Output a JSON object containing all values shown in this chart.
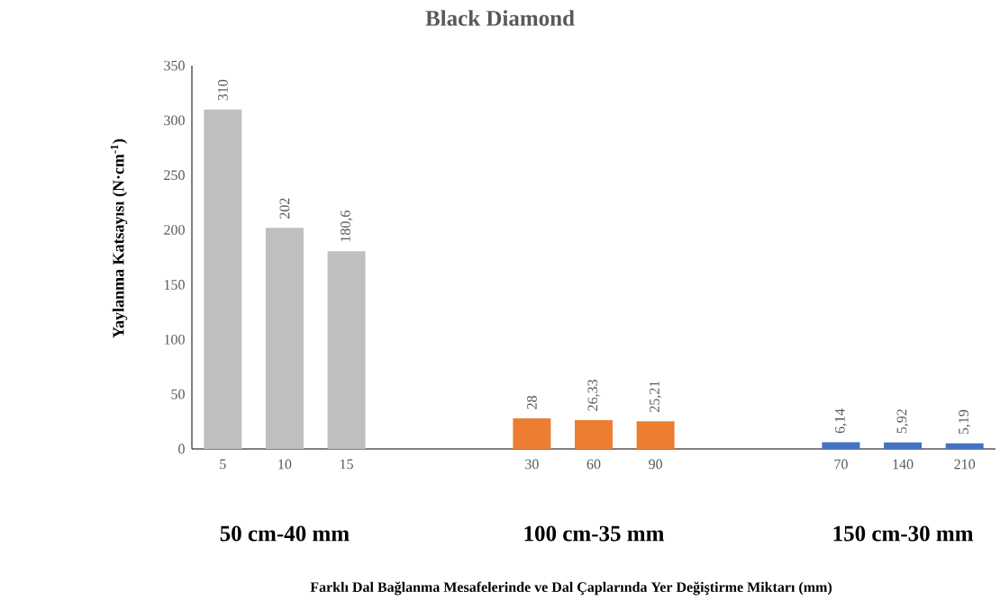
{
  "chart_data": {
    "type": "bar",
    "title": "Black Diamond",
    "categories": [
      "5",
      "10",
      "15",
      null,
      null,
      "30",
      "60",
      "90",
      null,
      null,
      "70",
      "140",
      "210"
    ],
    "values": [
      310,
      202,
      180.6,
      null,
      null,
      28,
      26.33,
      25.21,
      null,
      null,
      6.14,
      5.92,
      5.19
    ],
    "value_labels": [
      "310",
      "202",
      "180,6",
      null,
      null,
      "28",
      "26,33",
      "25,21",
      null,
      null,
      "6,14",
      "5,92",
      "5,19"
    ],
    "colors": [
      "#bfbfbf",
      "#bfbfbf",
      "#bfbfbf",
      null,
      null,
      "#ed7d31",
      "#ed7d31",
      "#ed7d31",
      null,
      null,
      "#4472c4",
      "#4472c4",
      "#4472c4"
    ],
    "ylim": [
      0,
      350
    ],
    "yticks": [
      0,
      50,
      100,
      150,
      200,
      250,
      300,
      350
    ],
    "ylabel": "Yaylanma  Katsayısı (N·cm$^{-1}$)",
    "annotations": [
      "50 cm-40 mm",
      "100 cm-35 mm",
      "150 cm-30 mm",
      "Farklı Dal Bağlanma  Mesafelerinde  ve  Dal  Çaplarında  Yer  Değiştirme  Miktarı (mm)"
    ],
    "grid": false
  }
}
